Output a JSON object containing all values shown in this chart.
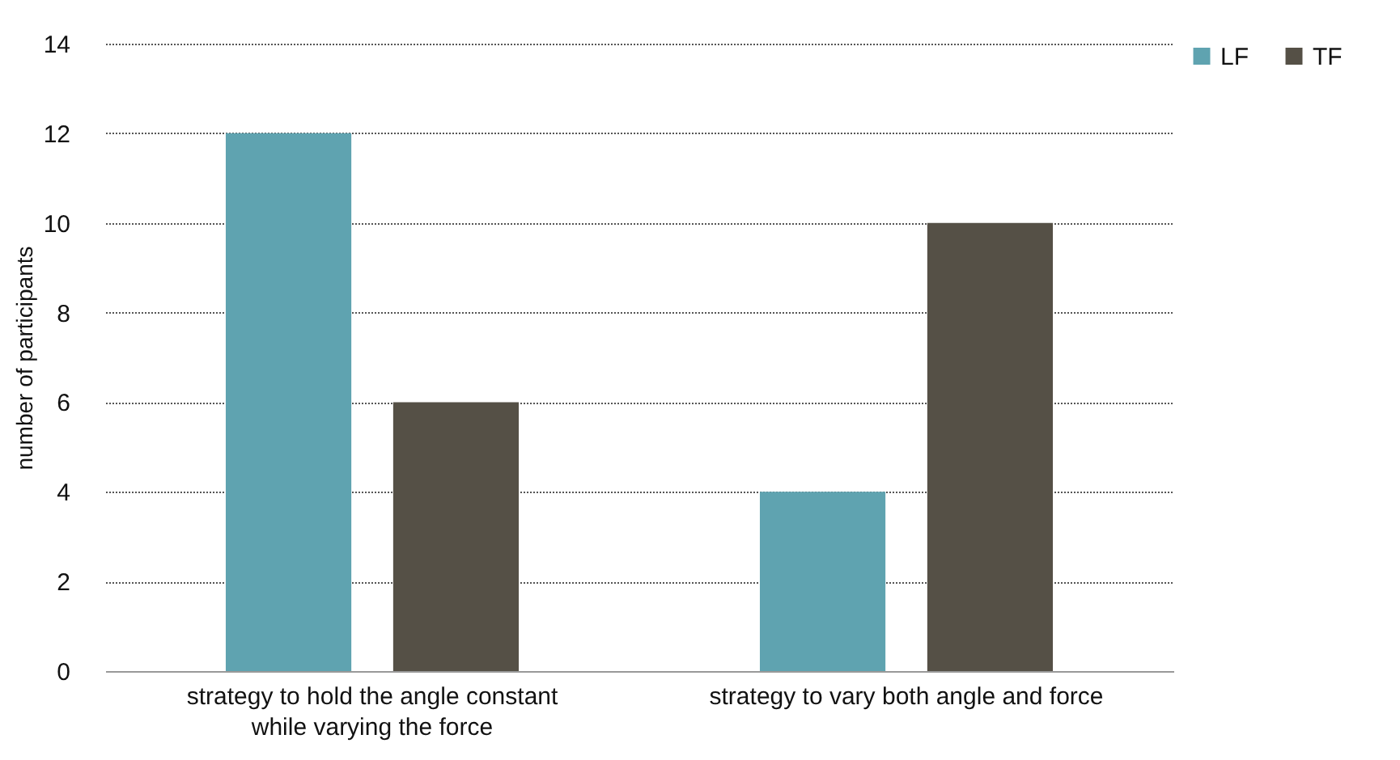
{
  "chart_data": {
    "type": "bar",
    "ylabel": "number of participants",
    "categories": [
      "strategy to hold the angle constant while varying the force",
      "strategy to vary both angle and force"
    ],
    "series": [
      {
        "name": "LF",
        "color": "#5fa3b0",
        "values": [
          12,
          4
        ]
      },
      {
        "name": "TF",
        "color": "#555046",
        "values": [
          6,
          10
        ]
      }
    ],
    "ylim": [
      0,
      14
    ],
    "yticks": [
      0,
      2,
      4,
      6,
      8,
      10,
      12,
      14
    ],
    "grid": "y",
    "legend": "right"
  }
}
